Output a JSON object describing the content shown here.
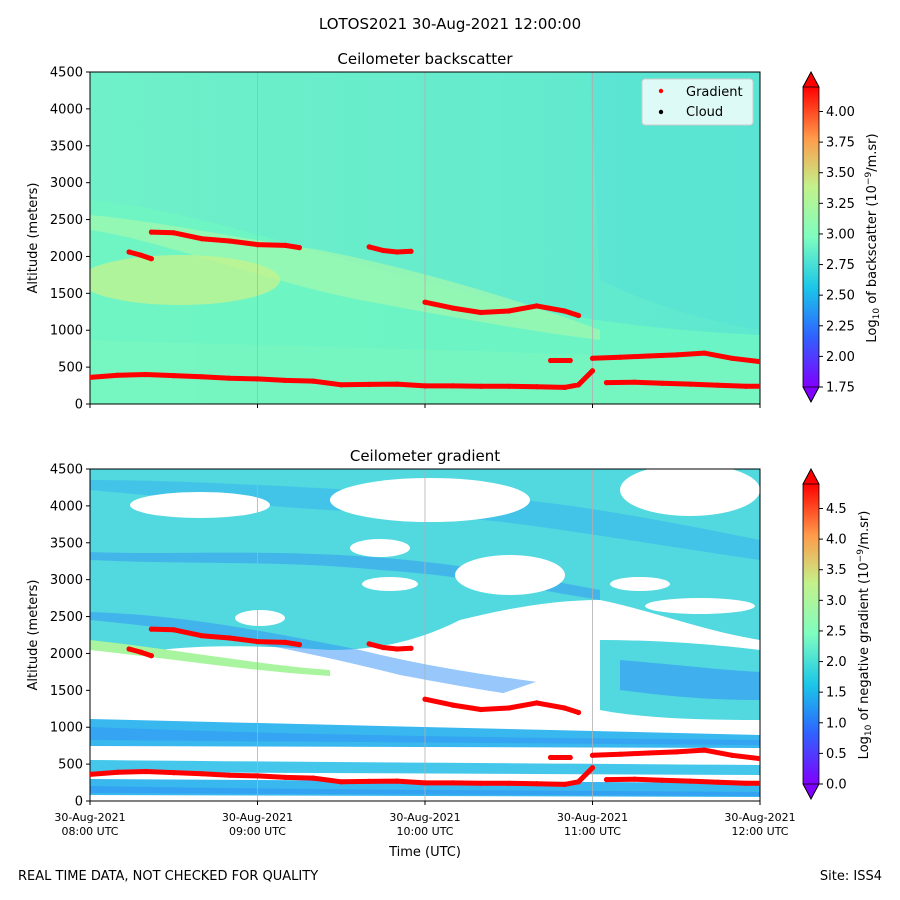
{
  "suptitle": "LOTOS2021 30-Aug-2021 12:00:00",
  "footer": {
    "left": "REAL TIME DATA, NOT CHECKED FOR QUALITY",
    "right": "Site: ISS4"
  },
  "chart_data": [
    {
      "type": "heatmap",
      "title": "Ceilometer backscatter",
      "ylabel": "Altitude (meters)",
      "xlabel": "",
      "x_range": [
        "08:00",
        "12:00"
      ],
      "ylim": [
        0,
        4500
      ],
      "yticks": [
        0,
        500,
        1000,
        1500,
        2000,
        2500,
        3000,
        3500,
        4000,
        4500
      ],
      "grid": "vertical lines at hourly ticks",
      "colorbar": {
        "label": "Log10 of backscatter (10^-9/m.sr)",
        "colormap": "rainbow",
        "range": [
          1.75,
          4.2
        ],
        "ticks": [
          "1.75",
          "2.00",
          "2.25",
          "2.50",
          "2.75",
          "3.00",
          "3.25",
          "3.50",
          "3.75",
          "4.00"
        ]
      },
      "legend": {
        "placement": "top-right",
        "entries": [
          "Gradient",
          "Cloud"
        ],
        "colors": [
          "#ff0000",
          "#000000"
        ]
      }
    },
    {
      "type": "heatmap",
      "title": "Ceilometer gradient",
      "ylabel": "Altitude (meters)",
      "xlabel": "Time (UTC)",
      "x_range": [
        "08:00",
        "12:00"
      ],
      "xticks": [
        [
          "30-Aug-2021",
          "08:00 UTC"
        ],
        [
          "30-Aug-2021",
          "09:00 UTC"
        ],
        [
          "30-Aug-2021",
          "10:00 UTC"
        ],
        [
          "30-Aug-2021",
          "11:00 UTC"
        ],
        [
          "30-Aug-2021",
          "12:00 UTC"
        ]
      ],
      "ylim": [
        0,
        4500
      ],
      "yticks": [
        0,
        500,
        1000,
        1500,
        2000,
        2500,
        3000,
        3500,
        4000,
        4500
      ],
      "grid": "vertical lines at hourly ticks",
      "colorbar": {
        "label": "Log10 of negative gradient (10^-9/m.sr)",
        "colormap": "rainbow",
        "range": [
          0.0,
          4.9
        ],
        "ticks": [
          "0.0",
          "0.5",
          "1.0",
          "1.5",
          "2.0",
          "2.5",
          "3.0",
          "3.5",
          "4.0",
          "4.5"
        ]
      }
    }
  ],
  "gradient_layers": [
    {
      "x": [
        "08:00",
        "08:10",
        "08:20",
        "08:30",
        "08:40",
        "08:50",
        "09:00",
        "09:10",
        "09:20",
        "09:30",
        "09:40",
        "09:50",
        "10:00",
        "10:10",
        "10:20",
        "10:30",
        "10:40",
        "10:50",
        "10:55",
        "11:00"
      ],
      "y": [
        360,
        390,
        400,
        385,
        370,
        350,
        340,
        320,
        310,
        260,
        265,
        270,
        245,
        245,
        240,
        240,
        235,
        225,
        260,
        450
      ]
    },
    {
      "x": [
        "11:05",
        "11:15",
        "11:25",
        "11:35",
        "11:45",
        "11:55",
        "12:00"
      ],
      "y": [
        290,
        295,
        280,
        270,
        255,
        240,
        240
      ]
    },
    {
      "x": [
        "11:00",
        "11:10",
        "11:20",
        "11:30",
        "11:40",
        "11:50",
        "12:00"
      ],
      "y": [
        620,
        635,
        650,
        665,
        690,
        620,
        575
      ]
    },
    {
      "x": [
        "10:45",
        "10:52"
      ],
      "y": [
        590,
        590
      ]
    },
    {
      "x": [
        "10:00",
        "10:10",
        "10:20",
        "10:30",
        "10:40",
        "10:50",
        "10:55"
      ],
      "y": [
        1380,
        1300,
        1240,
        1260,
        1330,
        1260,
        1200
      ]
    },
    {
      "x": [
        "09:40",
        "09:45",
        "09:50",
        "09:55"
      ],
      "y": [
        2130,
        2080,
        2060,
        2070
      ]
    },
    {
      "x": [
        "08:22",
        "08:30",
        "08:40",
        "08:50",
        "09:00",
        "09:10",
        "09:15"
      ],
      "y": [
        2330,
        2320,
        2240,
        2210,
        2160,
        2150,
        2120
      ]
    },
    {
      "x": [
        "08:14",
        "08:18",
        "08:22"
      ],
      "y": [
        2060,
        2020,
        1970
      ]
    }
  ]
}
